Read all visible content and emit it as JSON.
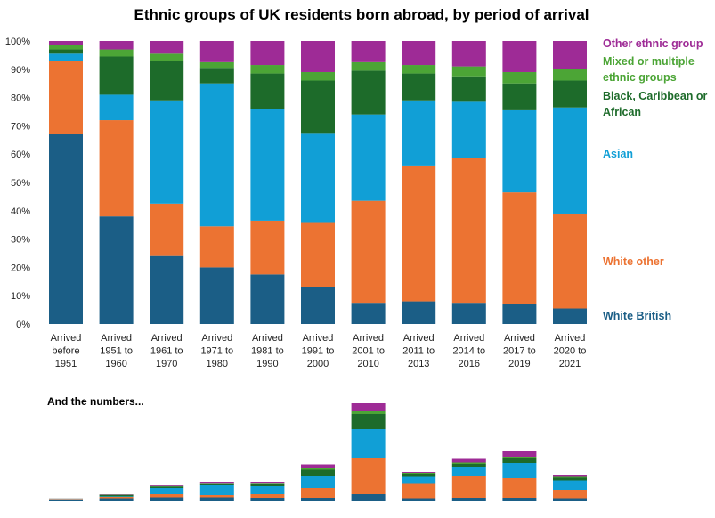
{
  "title": "Ethnic groups of UK residents born abroad, by period of arrival",
  "colors": {
    "White British": "#1b5e86",
    "White other": "#ec7332",
    "Asian": "#119fd6",
    "Black, Caribbean or African": "#1d6b2a",
    "Mixed or multiple ethnic groups": "#4ca536",
    "Other ethnic group": "#9e2b96"
  },
  "legend": [
    {
      "key": "Other ethnic group",
      "lines": [
        "Other ethnic group"
      ]
    },
    {
      "key": "Mixed or multiple ethnic groups",
      "lines": [
        "Mixed or multiple",
        "ethnic groups"
      ]
    },
    {
      "key": "Black, Caribbean or African",
      "lines": [
        "Black, Caribbean or",
        "African"
      ]
    },
    {
      "key": "Asian",
      "lines": [
        "Asian"
      ]
    },
    {
      "key": "White other",
      "lines": [
        "White other"
      ]
    },
    {
      "key": "White British",
      "lines": [
        "White British"
      ]
    }
  ],
  "secondary_title": "And the numbers...",
  "chart_data": [
    {
      "type": "bar",
      "stacked": true,
      "title": "Ethnic groups of UK residents born abroad, by period of arrival",
      "ylim": [
        0,
        100
      ],
      "yticks": [
        "0%",
        "10%",
        "20%",
        "30%",
        "40%",
        "50%",
        "60%",
        "70%",
        "80%",
        "90%",
        "100%"
      ],
      "categories": [
        [
          "Arrived",
          "before",
          "1951"
        ],
        [
          "Arrived",
          "1951 to",
          "1960"
        ],
        [
          "Arrived",
          "1961 to",
          "1970"
        ],
        [
          "Arrived",
          "1971 to",
          "1980"
        ],
        [
          "Arrived",
          "1981 to",
          "1990"
        ],
        [
          "Arrived",
          "1991 to",
          "2000"
        ],
        [
          "Arrived",
          "2001 to",
          "2010"
        ],
        [
          "Arrived",
          "2011 to",
          "2013"
        ],
        [
          "Arrived",
          "2014 to",
          "2016"
        ],
        [
          "Arrived",
          "2017 to",
          "2019"
        ],
        [
          "Arrived",
          "2020 to",
          "2021"
        ]
      ],
      "series": [
        {
          "name": "White British",
          "values": [
            67,
            38,
            24,
            20,
            17.5,
            13,
            7.5,
            8,
            7.5,
            7,
            5.5
          ]
        },
        {
          "name": "White other",
          "values": [
            26,
            34,
            18.5,
            14.5,
            19,
            23,
            36,
            48,
            51,
            39.5,
            33.5
          ]
        },
        {
          "name": "Asian",
          "values": [
            2.5,
            9,
            36.5,
            50.5,
            39.5,
            31.5,
            30.5,
            23,
            20,
            29,
            37.5
          ]
        },
        {
          "name": "Black, Caribbean or African",
          "values": [
            1.5,
            13.5,
            14,
            5.5,
            12.5,
            18.5,
            15.5,
            9.5,
            9,
            9.5,
            9.5
          ]
        },
        {
          "name": "Mixed or multiple ethnic groups",
          "values": [
            1.5,
            2.5,
            2.5,
            2,
            3,
            3,
            3,
            3,
            3.5,
            4,
            4
          ]
        },
        {
          "name": "Other ethnic group",
          "values": [
            1.5,
            3,
            4.5,
            7.5,
            8.5,
            11,
            7.5,
            8.5,
            9,
            11,
            10
          ]
        }
      ]
    },
    {
      "type": "bar",
      "stacked": true,
      "title": "And the numbers...",
      "ylim": [
        0,
        110
      ],
      "series": [
        {
          "name": "White British",
          "values": [
            1.2,
            2.5,
            4.5,
            4.5,
            4,
            4,
            8,
            2.5,
            3,
            3,
            2.5
          ]
        },
        {
          "name": "White other",
          "values": [
            0.6,
            2.5,
            3.5,
            2.5,
            4,
            11,
            40,
            17,
            25,
            23,
            10
          ]
        },
        {
          "name": "Asian",
          "values": [
            0.2,
            0.6,
            7,
            11,
            9,
            13,
            33,
            8,
            10,
            17,
            11
          ]
        },
        {
          "name": "Black, Caribbean or African",
          "values": [
            0.1,
            1.7,
            1.8,
            1.3,
            2.2,
            7.5,
            17,
            2.5,
            4,
            5,
            3
          ]
        },
        {
          "name": "Mixed or multiple ethnic groups",
          "values": [
            0.1,
            0.3,
            0.4,
            0.4,
            0.6,
            1.5,
            3,
            1,
            1.5,
            2,
            1
          ]
        },
        {
          "name": "Other ethnic group",
          "values": [
            0.1,
            0.4,
            0.8,
            1.3,
            1.3,
            4.5,
            9,
            2,
            4,
            6,
            1.5
          ]
        }
      ]
    }
  ]
}
